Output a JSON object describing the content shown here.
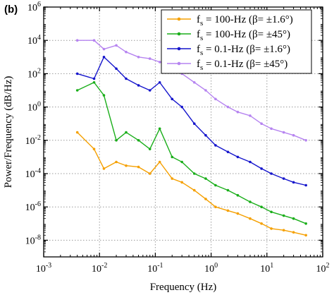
{
  "panel_label": "(b)",
  "chart_data": {
    "type": "line",
    "xlabel": "Frequency (Hz)",
    "ylabel": "Power/Frequency (dB/Hz)",
    "xscale": "log",
    "yscale": "log",
    "xlim": [
      0.001,
      100
    ],
    "ylim": [
      1e-09,
      1000000.0
    ],
    "x_ticks": [
      {
        "value": 0.001,
        "base": "10",
        "exp": "-3"
      },
      {
        "value": 0.01,
        "base": "10",
        "exp": "-2"
      },
      {
        "value": 0.1,
        "base": "10",
        "exp": "-1"
      },
      {
        "value": 1,
        "base": "10",
        "exp": "0"
      },
      {
        "value": 10,
        "base": "10",
        "exp": "1"
      },
      {
        "value": 100,
        "base": "10",
        "exp": "2"
      }
    ],
    "y_ticks": [
      {
        "value": 1e-08,
        "base": "10",
        "exp": "-8"
      },
      {
        "value": 1e-06,
        "base": "10",
        "exp": "-6"
      },
      {
        "value": 0.0001,
        "base": "10",
        "exp": "-4"
      },
      {
        "value": 0.01,
        "base": "10",
        "exp": "-2"
      },
      {
        "value": 1,
        "base": "10",
        "exp": "0"
      },
      {
        "value": 100,
        "base": "10",
        "exp": "2"
      },
      {
        "value": 10000,
        "base": "10",
        "exp": "4"
      },
      {
        "value": 1000000,
        "base": "10",
        "exp": "6"
      }
    ],
    "grid": true,
    "legend_position": "top-right",
    "series": [
      {
        "name": "fs = 100-Hz (β= ±1.6°)",
        "legend_main": "f",
        "legend_sub": "s",
        "legend_rest": " = 100-Hz (β= ±1.6°)",
        "color": "#F5A000",
        "x": [
          0.004,
          0.008,
          0.012,
          0.02,
          0.03,
          0.05,
          0.08,
          0.12,
          0.2,
          0.3,
          0.5,
          0.8,
          1.2,
          2,
          3,
          5,
          8,
          12,
          20,
          30,
          50
        ],
        "y": [
          0.03,
          0.003,
          0.0002,
          0.0005,
          0.0003,
          0.00025,
          0.0001,
          0.0005,
          5e-05,
          3e-05,
          1e-05,
          3e-06,
          1e-06,
          6e-07,
          4e-07,
          2e-07,
          1e-07,
          5e-08,
          4e-08,
          3e-08,
          2e-08
        ]
      },
      {
        "name": "fs = 100-Hz (β= ±45°)",
        "legend_main": "f",
        "legend_sub": "s",
        "legend_rest": " = 100-Hz (β= ±45°)",
        "color": "#1AAE1A",
        "x": [
          0.004,
          0.008,
          0.012,
          0.02,
          0.03,
          0.05,
          0.08,
          0.12,
          0.2,
          0.3,
          0.5,
          0.8,
          1.2,
          2,
          3,
          5,
          8,
          12,
          20,
          30,
          50
        ],
        "y": [
          10,
          30,
          5,
          0.01,
          0.03,
          0.01,
          0.003,
          0.05,
          0.001,
          0.0005,
          0.0001,
          5e-05,
          2e-05,
          1e-05,
          5e-06,
          2e-06,
          1e-06,
          5e-07,
          3e-07,
          2e-07,
          1e-07
        ]
      },
      {
        "name": "fs = 0.1-Hz (β= ±1.6°)",
        "legend_main": "f",
        "legend_sub": "s",
        "legend_rest": " = 0.1-Hz (β= ±1.6°)",
        "color": "#1515CC",
        "x": [
          0.004,
          0.008,
          0.012,
          0.02,
          0.03,
          0.05,
          0.08,
          0.12,
          0.2,
          0.3,
          0.5,
          0.8,
          1.2,
          2,
          3,
          5,
          8,
          12,
          20,
          30,
          50
        ],
        "y": [
          100,
          50,
          1000,
          200,
          50,
          20,
          10,
          30,
          3,
          1,
          0.1,
          0.02,
          0.005,
          0.002,
          0.001,
          0.0005,
          0.0002,
          0.0001,
          5e-05,
          3e-05,
          2e-05
        ]
      },
      {
        "name": "fs = 0.1-Hz (β= ±45°)",
        "legend_main": "f",
        "legend_sub": "s",
        "legend_rest": " = 0.1-Hz (β= ±45°)",
        "color": "#B684F0",
        "x": [
          0.004,
          0.008,
          0.012,
          0.02,
          0.03,
          0.05,
          0.08,
          0.12,
          0.2,
          0.3,
          0.5,
          0.8,
          1.2,
          2,
          3,
          5,
          8,
          12,
          20,
          30,
          50
        ],
        "y": [
          10000,
          10000,
          3000,
          5000,
          2000,
          1000,
          800,
          500,
          300,
          100,
          30,
          10,
          3,
          1,
          0.5,
          0.3,
          0.1,
          0.05,
          0.03,
          0.02,
          0.01
        ]
      }
    ]
  }
}
